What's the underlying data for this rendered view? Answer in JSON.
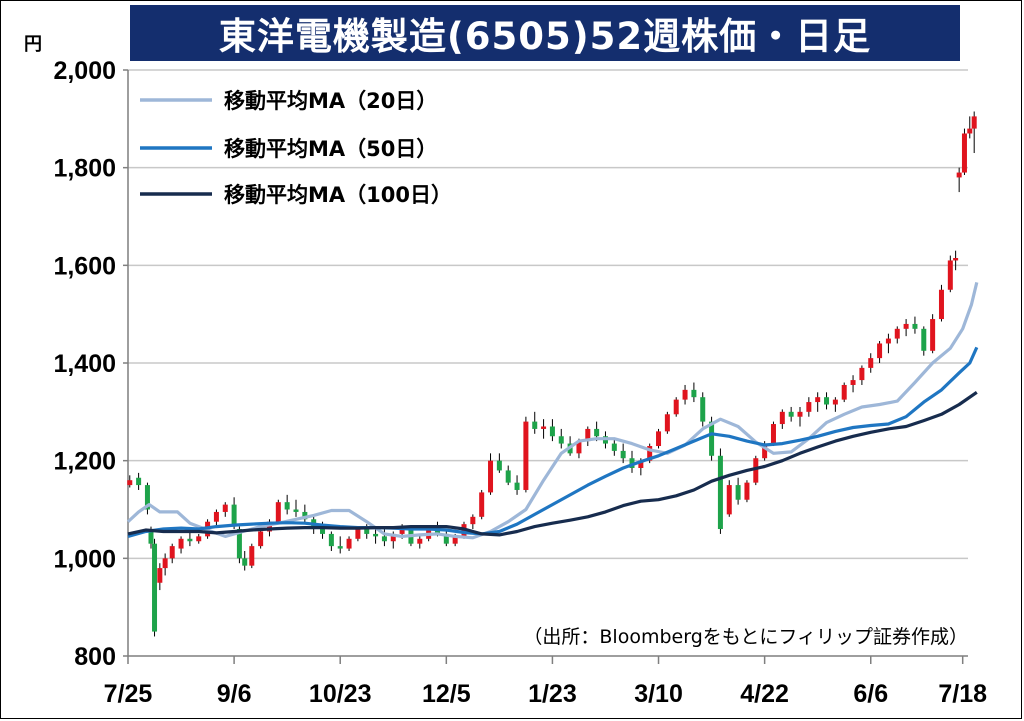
{
  "chart_data": {
    "type": "candlestick",
    "title": "東洋電機製造(6505)52週株価・日足",
    "unit": "円",
    "source": "（出所：Bloombergをもとにフィリップ証券作成）",
    "ylim": [
      800,
      2000
    ],
    "yticks": [
      800,
      1000,
      1200,
      1400,
      1600,
      1800,
      2000
    ],
    "ytick_labels": [
      "800",
      "1,000",
      "1,200",
      "1,400",
      "1,600",
      "1,800",
      "2,000"
    ],
    "xticks": [
      {
        "label": "7/25",
        "week": 0
      },
      {
        "label": "9/6",
        "week": 6
      },
      {
        "label": "10/23",
        "week": 12
      },
      {
        "label": "12/5",
        "week": 18
      },
      {
        "label": "1/23",
        "week": 24
      },
      {
        "label": "3/10",
        "week": 30
      },
      {
        "label": "4/22",
        "week": 36
      },
      {
        "label": "6/6",
        "week": 42
      },
      {
        "label": "7/18",
        "week": 47.2
      }
    ],
    "x_range_weeks": [
      0,
      47.5
    ],
    "grid": true,
    "legend_position": "top-left",
    "colors": {
      "up": "#e0141e",
      "down": "#1ea34a",
      "wick": "#000000"
    },
    "series": [
      {
        "name": "移動平均MA（20日）",
        "color": "#9eb7d8",
        "points": [
          [
            0,
            1075
          ],
          [
            0.6,
            1095
          ],
          [
            1.2,
            1110
          ],
          [
            1.8,
            1095
          ],
          [
            2.8,
            1095
          ],
          [
            3.5,
            1072
          ],
          [
            4.5,
            1058
          ],
          [
            5.5,
            1045
          ],
          [
            6.5,
            1055
          ],
          [
            7.5,
            1065
          ],
          [
            8.5,
            1072
          ],
          [
            9.5,
            1080
          ],
          [
            10.5,
            1088
          ],
          [
            11.5,
            1098
          ],
          [
            12.5,
            1098
          ],
          [
            13.5,
            1075
          ],
          [
            14.5,
            1050
          ],
          [
            15.5,
            1045
          ],
          [
            16.5,
            1048
          ],
          [
            17.5,
            1050
          ],
          [
            18.5,
            1045
          ],
          [
            19.5,
            1042
          ],
          [
            20.5,
            1055
          ],
          [
            21.5,
            1075
          ],
          [
            22.5,
            1100
          ],
          [
            23.5,
            1160
          ],
          [
            24.5,
            1215
          ],
          [
            25.5,
            1240
          ],
          [
            26.5,
            1245
          ],
          [
            27.5,
            1245
          ],
          [
            28.5,
            1235
          ],
          [
            29.5,
            1222
          ],
          [
            30.5,
            1215
          ],
          [
            31.5,
            1232
          ],
          [
            32.5,
            1265
          ],
          [
            33.5,
            1285
          ],
          [
            34.5,
            1270
          ],
          [
            35.5,
            1238
          ],
          [
            36.5,
            1215
          ],
          [
            37.5,
            1218
          ],
          [
            38.5,
            1245
          ],
          [
            39.5,
            1278
          ],
          [
            40.5,
            1295
          ],
          [
            41.5,
            1310
          ],
          [
            42.5,
            1315
          ],
          [
            43.5,
            1322
          ],
          [
            44.5,
            1360
          ],
          [
            45.5,
            1400
          ],
          [
            46.5,
            1430
          ],
          [
            47.2,
            1470
          ],
          [
            47.7,
            1520
          ],
          [
            48,
            1565
          ]
        ]
      },
      {
        "name": "移動平均MA（50日）",
        "color": "#1f76c2",
        "points": [
          [
            0,
            1045
          ],
          [
            1,
            1055
          ],
          [
            2,
            1060
          ],
          [
            3,
            1062
          ],
          [
            4,
            1060
          ],
          [
            5,
            1065
          ],
          [
            6,
            1068
          ],
          [
            7,
            1070
          ],
          [
            8,
            1072
          ],
          [
            9,
            1073
          ],
          [
            10,
            1072
          ],
          [
            11,
            1068
          ],
          [
            12,
            1065
          ],
          [
            13,
            1063
          ],
          [
            14,
            1063
          ],
          [
            15,
            1062
          ],
          [
            16,
            1060
          ],
          [
            17,
            1060
          ],
          [
            18,
            1058
          ],
          [
            19,
            1053
          ],
          [
            20,
            1050
          ],
          [
            21,
            1055
          ],
          [
            22,
            1070
          ],
          [
            23,
            1090
          ],
          [
            24,
            1110
          ],
          [
            25,
            1130
          ],
          [
            26,
            1150
          ],
          [
            27,
            1168
          ],
          [
            28,
            1185
          ],
          [
            29,
            1198
          ],
          [
            30,
            1210
          ],
          [
            31,
            1225
          ],
          [
            32,
            1240
          ],
          [
            33,
            1255
          ],
          [
            34,
            1250
          ],
          [
            35,
            1240
          ],
          [
            36,
            1232
          ],
          [
            37,
            1235
          ],
          [
            38,
            1242
          ],
          [
            39,
            1250
          ],
          [
            40,
            1260
          ],
          [
            41,
            1268
          ],
          [
            42,
            1272
          ],
          [
            43,
            1275
          ],
          [
            44,
            1290
          ],
          [
            45,
            1320
          ],
          [
            46,
            1345
          ],
          [
            47,
            1380
          ],
          [
            47.6,
            1400
          ],
          [
            48,
            1432
          ]
        ]
      },
      {
        "name": "移動平均MA（100日）",
        "color": "#172c4e",
        "points": [
          [
            0,
            1050
          ],
          [
            1,
            1058
          ],
          [
            2,
            1055
          ],
          [
            3,
            1055
          ],
          [
            4,
            1055
          ],
          [
            5,
            1052
          ],
          [
            6,
            1055
          ],
          [
            7,
            1058
          ],
          [
            8,
            1060
          ],
          [
            9,
            1062
          ],
          [
            10,
            1063
          ],
          [
            11,
            1063
          ],
          [
            12,
            1062
          ],
          [
            13,
            1062
          ],
          [
            14,
            1063
          ],
          [
            15,
            1063
          ],
          [
            16,
            1065
          ],
          [
            17,
            1065
          ],
          [
            18,
            1065
          ],
          [
            19,
            1060
          ],
          [
            20,
            1050
          ],
          [
            21,
            1048
          ],
          [
            22,
            1055
          ],
          [
            23,
            1065
          ],
          [
            24,
            1072
          ],
          [
            25,
            1078
          ],
          [
            26,
            1085
          ],
          [
            27,
            1095
          ],
          [
            28,
            1108
          ],
          [
            29,
            1117
          ],
          [
            30,
            1120
          ],
          [
            31,
            1128
          ],
          [
            32,
            1140
          ],
          [
            33,
            1158
          ],
          [
            34,
            1170
          ],
          [
            35,
            1180
          ],
          [
            36,
            1188
          ],
          [
            37,
            1200
          ],
          [
            38,
            1215
          ],
          [
            39,
            1228
          ],
          [
            40,
            1240
          ],
          [
            41,
            1250
          ],
          [
            42,
            1258
          ],
          [
            43,
            1265
          ],
          [
            44,
            1270
          ],
          [
            45,
            1282
          ],
          [
            46,
            1295
          ],
          [
            47,
            1315
          ],
          [
            48,
            1340
          ]
        ]
      }
    ],
    "candles": [
      [
        0.1,
        1150,
        1170,
        1145,
        1160
      ],
      [
        0.6,
        1165,
        1175,
        1140,
        1150
      ],
      [
        1.1,
        1150,
        1155,
        1090,
        1100
      ],
      [
        1.3,
        1060,
        1065,
        1020,
        1030
      ],
      [
        1.5,
        1030,
        1040,
        840,
        850
      ],
      [
        1.8,
        950,
        990,
        935,
        980
      ],
      [
        2.1,
        980,
        1010,
        965,
        1000
      ],
      [
        2.5,
        1000,
        1030,
        990,
        1025
      ],
      [
        3,
        1020,
        1045,
        1010,
        1040
      ],
      [
        3.5,
        1040,
        1060,
        1025,
        1035
      ],
      [
        4,
        1035,
        1050,
        1030,
        1045
      ],
      [
        4.5,
        1045,
        1080,
        1040,
        1075
      ],
      [
        5,
        1075,
        1100,
        1065,
        1095
      ],
      [
        5.5,
        1095,
        1115,
        1085,
        1110
      ],
      [
        6,
        1110,
        1125,
        1060,
        1065
      ],
      [
        6.3,
        1060,
        1065,
        990,
        1000
      ],
      [
        6.6,
        1000,
        1015,
        975,
        985
      ],
      [
        7,
        985,
        1030,
        980,
        1025
      ],
      [
        7.5,
        1025,
        1060,
        1020,
        1055
      ],
      [
        8,
        1055,
        1080,
        1045,
        1075
      ],
      [
        8.5,
        1075,
        1120,
        1070,
        1115
      ],
      [
        9,
        1115,
        1130,
        1090,
        1100
      ],
      [
        9.5,
        1100,
        1120,
        1085,
        1095
      ],
      [
        10,
        1095,
        1110,
        1070,
        1080
      ],
      [
        10.5,
        1080,
        1090,
        1050,
        1060
      ],
      [
        11,
        1060,
        1075,
        1040,
        1050
      ],
      [
        11.5,
        1050,
        1055,
        1015,
        1025
      ],
      [
        12,
        1025,
        1045,
        1010,
        1020
      ],
      [
        12.5,
        1020,
        1045,
        1015,
        1040
      ],
      [
        13,
        1040,
        1065,
        1035,
        1060
      ],
      [
        13.5,
        1060,
        1070,
        1040,
        1050
      ],
      [
        14,
        1050,
        1065,
        1030,
        1045
      ],
      [
        14.5,
        1045,
        1060,
        1025,
        1035
      ],
      [
        15,
        1035,
        1055,
        1020,
        1050
      ],
      [
        15.5,
        1050,
        1070,
        1040,
        1060
      ],
      [
        16,
        1060,
        1065,
        1025,
        1030
      ],
      [
        16.5,
        1030,
        1045,
        1020,
        1040
      ],
      [
        17,
        1040,
        1065,
        1035,
        1060
      ],
      [
        17.5,
        1060,
        1075,
        1045,
        1050
      ],
      [
        18,
        1050,
        1055,
        1025,
        1030
      ],
      [
        18.5,
        1030,
        1050,
        1025,
        1045
      ],
      [
        19,
        1045,
        1075,
        1040,
        1070
      ],
      [
        19.5,
        1070,
        1090,
        1060,
        1085
      ],
      [
        20,
        1085,
        1140,
        1080,
        1135
      ],
      [
        20.5,
        1135,
        1215,
        1130,
        1200
      ],
      [
        21,
        1200,
        1215,
        1175,
        1180
      ],
      [
        21.5,
        1180,
        1190,
        1150,
        1155
      ],
      [
        22,
        1155,
        1170,
        1130,
        1140
      ],
      [
        22.5,
        1140,
        1290,
        1135,
        1280
      ],
      [
        23,
        1280,
        1300,
        1255,
        1265
      ],
      [
        23.5,
        1265,
        1285,
        1245,
        1270
      ],
      [
        24,
        1270,
        1285,
        1240,
        1250
      ],
      [
        24.5,
        1250,
        1265,
        1225,
        1235
      ],
      [
        25,
        1235,
        1250,
        1210,
        1215
      ],
      [
        25.5,
        1215,
        1245,
        1205,
        1240
      ],
      [
        26,
        1240,
        1270,
        1230,
        1265
      ],
      [
        26.5,
        1265,
        1280,
        1240,
        1250
      ],
      [
        27,
        1250,
        1260,
        1225,
        1235
      ],
      [
        27.5,
        1235,
        1245,
        1210,
        1220
      ],
      [
        28,
        1220,
        1235,
        1195,
        1205
      ],
      [
        28.5,
        1205,
        1220,
        1175,
        1185
      ],
      [
        29,
        1185,
        1205,
        1170,
        1200
      ],
      [
        29.5,
        1200,
        1235,
        1195,
        1230
      ],
      [
        30,
        1230,
        1265,
        1225,
        1260
      ],
      [
        30.5,
        1260,
        1300,
        1255,
        1295
      ],
      [
        31,
        1295,
        1330,
        1290,
        1325
      ],
      [
        31.5,
        1325,
        1355,
        1315,
        1345
      ],
      [
        32,
        1345,
        1360,
        1320,
        1330
      ],
      [
        32.5,
        1330,
        1340,
        1270,
        1280
      ],
      [
        33,
        1280,
        1290,
        1200,
        1210
      ],
      [
        33.5,
        1210,
        1225,
        1050,
        1060
      ],
      [
        34,
        1090,
        1160,
        1085,
        1150
      ],
      [
        34.5,
        1150,
        1165,
        1110,
        1120
      ],
      [
        35,
        1120,
        1160,
        1115,
        1155
      ],
      [
        35.5,
        1155,
        1210,
        1150,
        1205
      ],
      [
        36,
        1205,
        1240,
        1200,
        1235
      ],
      [
        36.5,
        1235,
        1280,
        1230,
        1275
      ],
      [
        37,
        1275,
        1305,
        1265,
        1300
      ],
      [
        37.5,
        1300,
        1310,
        1280,
        1290
      ],
      [
        38,
        1290,
        1310,
        1270,
        1300
      ],
      [
        38.5,
        1300,
        1330,
        1290,
        1320
      ],
      [
        39,
        1320,
        1340,
        1300,
        1330
      ],
      [
        39.5,
        1330,
        1340,
        1305,
        1315
      ],
      [
        40,
        1315,
        1330,
        1300,
        1325
      ],
      [
        40.5,
        1325,
        1360,
        1320,
        1355
      ],
      [
        41,
        1355,
        1375,
        1340,
        1365
      ],
      [
        41.5,
        1365,
        1395,
        1355,
        1390
      ],
      [
        42,
        1390,
        1420,
        1380,
        1410
      ],
      [
        42.5,
        1410,
        1445,
        1400,
        1440
      ],
      [
        43,
        1440,
        1460,
        1420,
        1450
      ],
      [
        43.5,
        1450,
        1475,
        1440,
        1470
      ],
      [
        44,
        1470,
        1490,
        1455,
        1480
      ],
      [
        44.5,
        1480,
        1495,
        1460,
        1470
      ],
      [
        45,
        1470,
        1475,
        1415,
        1425
      ],
      [
        45.5,
        1425,
        1500,
        1420,
        1490
      ],
      [
        46,
        1490,
        1560,
        1485,
        1550
      ],
      [
        46.5,
        1550,
        1620,
        1545,
        1610
      ],
      [
        46.8,
        1610,
        1630,
        1590,
        1615
      ],
      [
        47,
        1780,
        1800,
        1750,
        1790
      ],
      [
        47.3,
        1790,
        1880,
        1785,
        1870
      ],
      [
        47.6,
        1870,
        1905,
        1860,
        1880
      ],
      [
        47.85,
        1880,
        1915,
        1830,
        1905
      ]
    ]
  }
}
